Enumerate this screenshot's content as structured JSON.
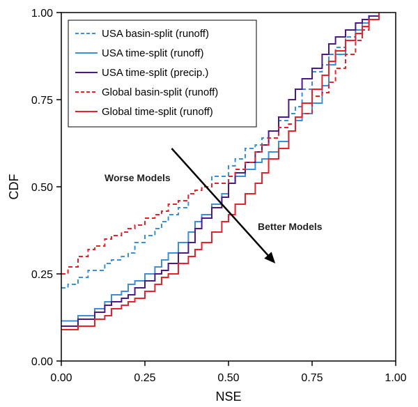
{
  "chart_data": {
    "type": "line",
    "xlabel": "NSE",
    "ylabel": "CDF",
    "xlim": [
      0,
      1
    ],
    "ylim": [
      0,
      1
    ],
    "x_ticks": [
      "0.00",
      "0.25",
      "0.50",
      "0.75",
      "1.00"
    ],
    "y_ticks": [
      "0.00",
      "0.25",
      "0.50",
      "0.75",
      "1.00"
    ],
    "legend_position": "top-left",
    "grid": false,
    "annotations": {
      "worse": "Worse Models",
      "better": "Better Models",
      "arrow_from": [
        0.33,
        0.61
      ],
      "arrow_to": [
        0.64,
        0.28
      ]
    },
    "series": [
      {
        "name": "USA basin-split (runoff)",
        "color": "#3a8fd9",
        "dash": "dashed",
        "step": true,
        "x": [
          0.0,
          0.02,
          0.05,
          0.08,
          0.1,
          0.13,
          0.15,
          0.18,
          0.2,
          0.22,
          0.25,
          0.28,
          0.3,
          0.32,
          0.35,
          0.38,
          0.4,
          0.42,
          0.45,
          0.48,
          0.5,
          0.52,
          0.55,
          0.58,
          0.6,
          0.62,
          0.65,
          0.68,
          0.7,
          0.72,
          0.75,
          0.78,
          0.8,
          0.82,
          0.85,
          0.88,
          0.9,
          0.92,
          0.95
        ],
        "y": [
          0.21,
          0.22,
          0.24,
          0.26,
          0.26,
          0.28,
          0.29,
          0.3,
          0.31,
          0.34,
          0.36,
          0.38,
          0.4,
          0.42,
          0.44,
          0.48,
          0.49,
          0.5,
          0.53,
          0.53,
          0.56,
          0.58,
          0.61,
          0.62,
          0.64,
          0.66,
          0.69,
          0.71,
          0.73,
          0.78,
          0.83,
          0.85,
          0.88,
          0.9,
          0.93,
          0.97,
          0.97,
          0.98,
          1.0
        ]
      },
      {
        "name": "USA time-split (runoff)",
        "color": "#3a8fd9",
        "dash": "solid",
        "step": true,
        "x": [
          0.0,
          0.05,
          0.1,
          0.13,
          0.15,
          0.18,
          0.2,
          0.22,
          0.25,
          0.28,
          0.3,
          0.32,
          0.35,
          0.38,
          0.4,
          0.42,
          0.45,
          0.48,
          0.5,
          0.52,
          0.55,
          0.58,
          0.6,
          0.62,
          0.65,
          0.68,
          0.7,
          0.72,
          0.75,
          0.78,
          0.8,
          0.82,
          0.85,
          0.88,
          0.9,
          0.92,
          0.95
        ],
        "y": [
          0.115,
          0.13,
          0.15,
          0.17,
          0.19,
          0.2,
          0.22,
          0.23,
          0.25,
          0.27,
          0.29,
          0.31,
          0.34,
          0.37,
          0.4,
          0.42,
          0.45,
          0.48,
          0.51,
          0.53,
          0.55,
          0.57,
          0.58,
          0.6,
          0.63,
          0.66,
          0.69,
          0.71,
          0.74,
          0.79,
          0.85,
          0.88,
          0.92,
          0.95,
          0.97,
          0.99,
          1.0
        ]
      },
      {
        "name": "USA time-split (precip.)",
        "color": "#4b1a8a",
        "dash": "solid",
        "step": true,
        "x": [
          0.0,
          0.05,
          0.1,
          0.13,
          0.15,
          0.18,
          0.2,
          0.22,
          0.25,
          0.28,
          0.3,
          0.32,
          0.35,
          0.38,
          0.4,
          0.42,
          0.45,
          0.48,
          0.5,
          0.52,
          0.55,
          0.58,
          0.6,
          0.62,
          0.65,
          0.68,
          0.7,
          0.72,
          0.75,
          0.78,
          0.8,
          0.82,
          0.85,
          0.88,
          0.9,
          0.92,
          0.95
        ],
        "y": [
          0.1,
          0.12,
          0.14,
          0.16,
          0.17,
          0.18,
          0.19,
          0.21,
          0.23,
          0.25,
          0.26,
          0.28,
          0.31,
          0.34,
          0.38,
          0.41,
          0.44,
          0.47,
          0.51,
          0.54,
          0.57,
          0.6,
          0.62,
          0.66,
          0.7,
          0.75,
          0.78,
          0.81,
          0.84,
          0.88,
          0.91,
          0.93,
          0.95,
          0.97,
          0.98,
          0.99,
          1.0
        ]
      },
      {
        "name": "Global basin-split (runoff)",
        "color": "#e8202a",
        "dash": "dashed",
        "step": true,
        "x": [
          0.0,
          0.02,
          0.05,
          0.08,
          0.1,
          0.13,
          0.15,
          0.18,
          0.2,
          0.22,
          0.25,
          0.28,
          0.3,
          0.32,
          0.35,
          0.38,
          0.4,
          0.42,
          0.45,
          0.48,
          0.5,
          0.52,
          0.55,
          0.58,
          0.6,
          0.62,
          0.65,
          0.68,
          0.7,
          0.72,
          0.75,
          0.78,
          0.8,
          0.82,
          0.85,
          0.88,
          0.9,
          0.92,
          0.95
        ],
        "y": [
          0.25,
          0.27,
          0.3,
          0.32,
          0.33,
          0.35,
          0.36,
          0.37,
          0.38,
          0.39,
          0.41,
          0.42,
          0.43,
          0.45,
          0.46,
          0.48,
          0.49,
          0.5,
          0.51,
          0.51,
          0.53,
          0.55,
          0.57,
          0.6,
          0.62,
          0.64,
          0.67,
          0.68,
          0.7,
          0.71,
          0.76,
          0.77,
          0.8,
          0.84,
          0.88,
          0.92,
          0.95,
          0.98,
          1.0
        ]
      },
      {
        "name": "Global time-split (runoff)",
        "color": "#e8202a",
        "dash": "solid",
        "step": true,
        "x": [
          0.0,
          0.05,
          0.1,
          0.13,
          0.15,
          0.18,
          0.2,
          0.22,
          0.25,
          0.28,
          0.3,
          0.32,
          0.35,
          0.38,
          0.4,
          0.42,
          0.45,
          0.48,
          0.5,
          0.52,
          0.55,
          0.58,
          0.6,
          0.62,
          0.65,
          0.68,
          0.7,
          0.72,
          0.75,
          0.78,
          0.8,
          0.82,
          0.85,
          0.88,
          0.9,
          0.92,
          0.95
        ],
        "y": [
          0.09,
          0.1,
          0.12,
          0.13,
          0.15,
          0.16,
          0.17,
          0.18,
          0.2,
          0.22,
          0.24,
          0.25,
          0.28,
          0.3,
          0.32,
          0.34,
          0.37,
          0.4,
          0.42,
          0.45,
          0.48,
          0.51,
          0.54,
          0.58,
          0.61,
          0.66,
          0.7,
          0.74,
          0.78,
          0.82,
          0.86,
          0.89,
          0.92,
          0.94,
          0.96,
          0.98,
          1.0
        ]
      }
    ]
  }
}
